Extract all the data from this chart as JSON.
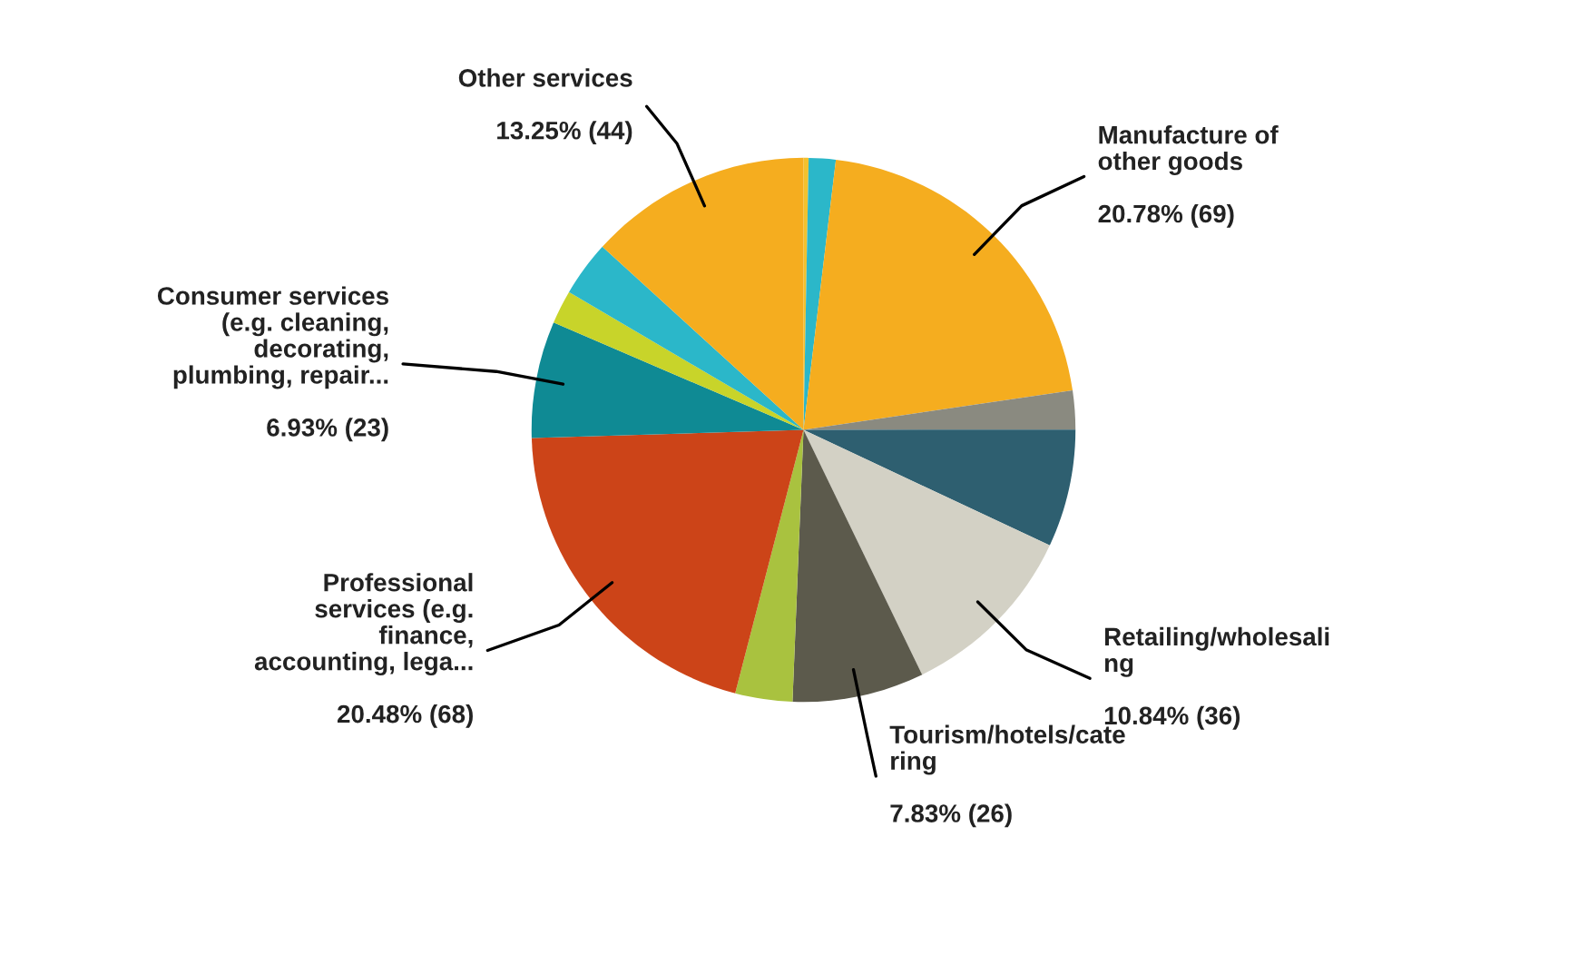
{
  "chart_data": {
    "type": "pie",
    "categories": [
      null,
      null,
      "Manufacture of\nother goods",
      null,
      null,
      "Retailing/wholesali\nng",
      "Tourism/hotels/cate\nring",
      null,
      "Professional\nservices (e.g.\nfinance,\naccounting, lega...",
      "Consumer services\n(e.g. cleaning,\ndecorating,\nplumbing, repair...",
      null,
      null,
      "Other services"
    ],
    "values": [
      0.3,
      1.6,
      20.78,
      2.3,
      7.0,
      10.84,
      7.83,
      3.4,
      20.48,
      6.93,
      2.0,
      3.3,
      13.25
    ],
    "value_labels": [
      null,
      null,
      "20.78% (69)",
      null,
      null,
      "10.84% (36)",
      "7.83% (26)",
      null,
      "20.48% (68)",
      "6.93% (23)",
      null,
      null,
      "13.25% (44)"
    ],
    "colors": [
      "#f2c12e",
      "#2bb7c9",
      "#f5ad1f",
      "#8a8a80",
      "#2e5f70",
      "#d3d1c5",
      "#5c5a4c",
      "#a9c23f",
      "#cc4418",
      "#0f8a94",
      "#c8d42a",
      "#2bb7c9",
      "#f5ad1f"
    ],
    "legend": false
  }
}
